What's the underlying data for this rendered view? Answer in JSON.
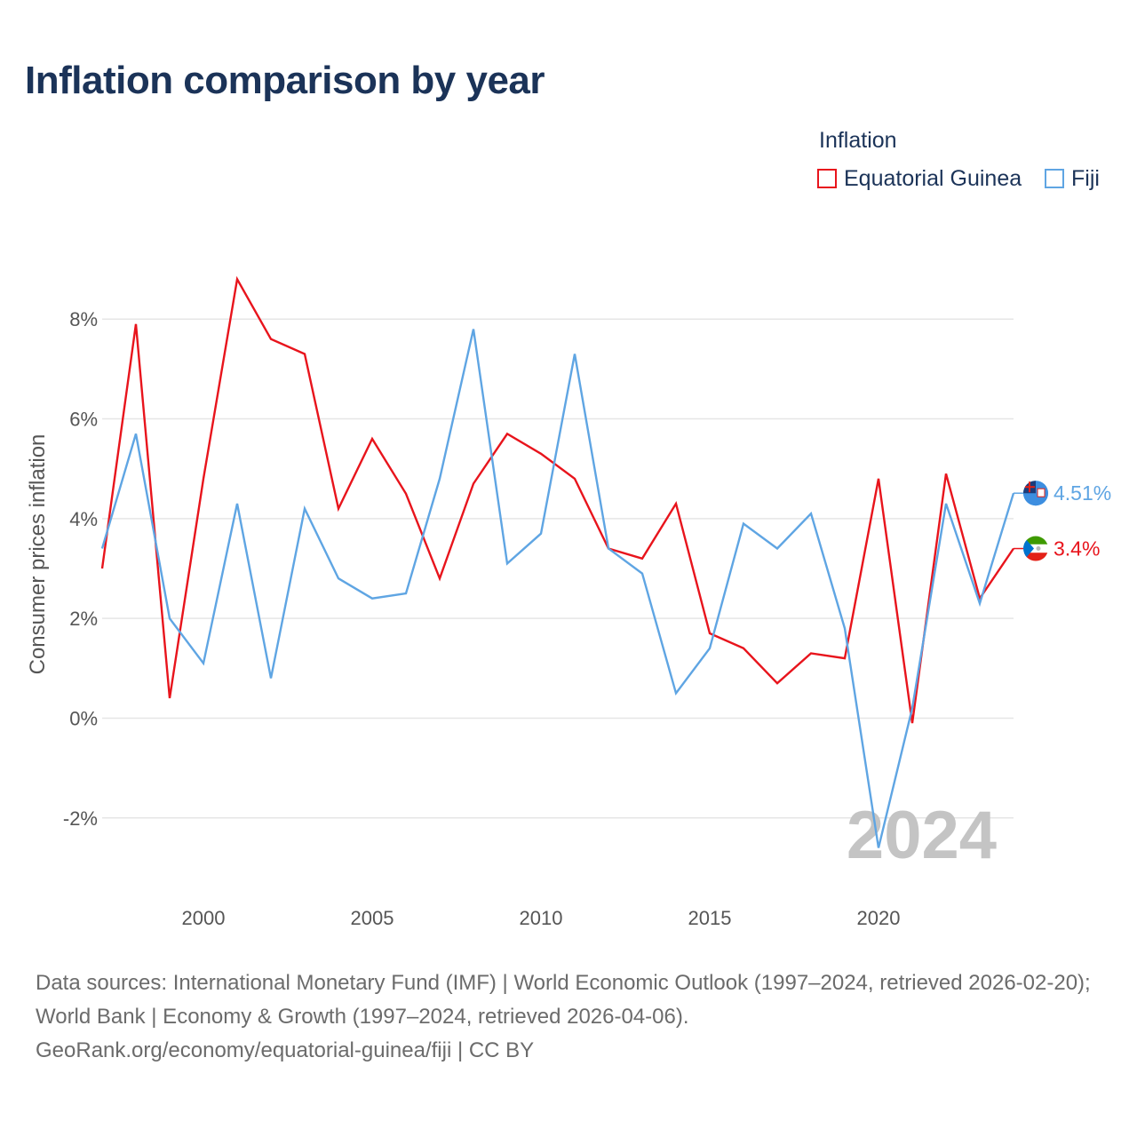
{
  "title": "Inflation comparison by year",
  "legend": {
    "title": "Inflation",
    "items": [
      {
        "label": "Equatorial Guinea",
        "color": "#e8141c"
      },
      {
        "label": "Fiji",
        "color": "#5fa5e3"
      }
    ]
  },
  "footer": {
    "line1": "Data sources: International Monetary Fund (IMF) | World Economic Outlook (1997–2024, retrieved 2026-02-20); World Bank | Economy & Growth (1997–2024, retrieved 2026-04-06).",
    "line2": "GeoRank.org/economy/equatorial-guinea/fiji | CC BY"
  },
  "chart_data": {
    "type": "line",
    "title": "Inflation comparison by year",
    "xlabel": "",
    "ylabel": "Consumer prices inflation",
    "x": [
      1997,
      1998,
      1999,
      2000,
      2001,
      2002,
      2003,
      2004,
      2005,
      2006,
      2007,
      2008,
      2009,
      2010,
      2011,
      2012,
      2013,
      2014,
      2015,
      2016,
      2017,
      2018,
      2019,
      2020,
      2021,
      2022,
      2023,
      2024
    ],
    "xlim": [
      1997,
      2024
    ],
    "ylim": [
      -3.5,
      9.5
    ],
    "xticks": [
      2000,
      2005,
      2010,
      2015,
      2020
    ],
    "xtick_labels": [
      "2000",
      "2005",
      "2010",
      "2015",
      "2020"
    ],
    "yticks": [
      -2,
      0,
      2,
      4,
      6,
      8
    ],
    "ytick_labels": [
      "-2%",
      "0%",
      "2%",
      "4%",
      "6%",
      "8%"
    ],
    "grid": true,
    "watermark": "2024",
    "series": [
      {
        "name": "Equatorial Guinea",
        "color": "#e8141c",
        "end_label": "3.4%",
        "values": [
          3.0,
          7.9,
          0.4,
          4.8,
          8.8,
          7.6,
          7.3,
          4.2,
          5.6,
          4.5,
          2.8,
          4.7,
          5.7,
          5.3,
          4.8,
          3.4,
          3.2,
          4.3,
          1.7,
          1.4,
          0.7,
          1.3,
          1.2,
          4.8,
          -0.1,
          4.9,
          2.4,
          3.4
        ]
      },
      {
        "name": "Fiji",
        "color": "#5fa5e3",
        "end_label": "4.51%",
        "values": [
          3.4,
          5.7,
          2.0,
          1.1,
          4.3,
          0.8,
          4.2,
          2.8,
          2.4,
          2.5,
          4.8,
          7.8,
          3.1,
          3.7,
          7.3,
          3.4,
          2.9,
          0.5,
          1.4,
          3.9,
          3.4,
          4.1,
          1.8,
          -2.6,
          0.2,
          4.3,
          2.3,
          4.51
        ]
      }
    ]
  }
}
